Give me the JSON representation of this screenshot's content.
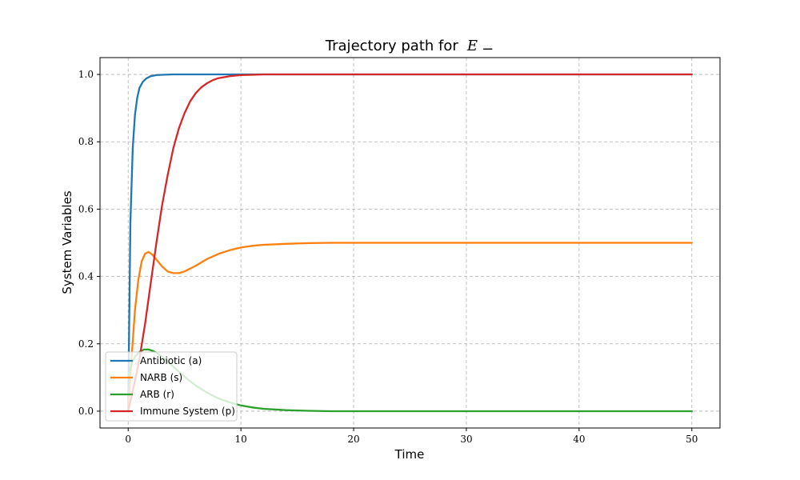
{
  "chart_data": {
    "type": "line",
    "title": "Trajectory path for",
    "title_math": "E",
    "title_math_sub": "−",
    "xlabel": "Time",
    "ylabel": "System Variables",
    "xlim": [
      -2.5,
      52.5
    ],
    "ylim": [
      -0.05,
      1.05
    ],
    "xticks": [
      0,
      10,
      20,
      30,
      40,
      50
    ],
    "xtick_labels": [
      "0",
      "10",
      "20",
      "30",
      "40",
      "50"
    ],
    "yticks": [
      0.0,
      0.2,
      0.4,
      0.6,
      0.8,
      1.0
    ],
    "ytick_labels": [
      "0.0",
      "0.2",
      "0.4",
      "0.6",
      "0.8",
      "1.0"
    ],
    "grid": true,
    "legend_position": "lower-left",
    "series": [
      {
        "name": "Antibiotic (a)",
        "color": "#1f77b4",
        "x": [
          0,
          0.2,
          0.4,
          0.6,
          0.8,
          1.0,
          1.3,
          1.6,
          2.0,
          2.5,
          3.0,
          4.0,
          6.0,
          10,
          20,
          30,
          40,
          50
        ],
        "y": [
          0.0,
          0.56,
          0.78,
          0.88,
          0.93,
          0.96,
          0.978,
          0.988,
          0.995,
          0.998,
          0.999,
          1.0,
          1.0,
          1.0,
          1.0,
          1.0,
          1.0,
          1.0
        ]
      },
      {
        "name": "NARB (s)",
        "color": "#ff7f0e",
        "x": [
          0,
          0.3,
          0.6,
          0.9,
          1.2,
          1.5,
          1.8,
          2.1,
          2.5,
          3.0,
          3.5,
          4.0,
          4.5,
          5.0,
          6.0,
          7.0,
          8.0,
          9.0,
          10,
          11,
          12,
          14,
          16,
          18,
          20,
          25,
          30,
          40,
          50
        ],
        "y": [
          0.0,
          0.16,
          0.3,
          0.39,
          0.445,
          0.468,
          0.473,
          0.466,
          0.45,
          0.43,
          0.415,
          0.41,
          0.41,
          0.415,
          0.432,
          0.452,
          0.467,
          0.478,
          0.486,
          0.491,
          0.494,
          0.497,
          0.499,
          0.5,
          0.5,
          0.5,
          0.5,
          0.5,
          0.5
        ]
      },
      {
        "name": "ARB (r)",
        "color": "#2ca02c",
        "x": [
          0,
          0.3,
          0.6,
          1.0,
          1.4,
          1.8,
          2.2,
          2.6,
          3.0,
          3.5,
          4.0,
          5.0,
          6.0,
          7.0,
          8.0,
          9.0,
          10,
          11,
          12,
          14,
          16,
          18,
          20,
          30,
          40,
          50
        ],
        "y": [
          0.1,
          0.14,
          0.162,
          0.176,
          0.183,
          0.183,
          0.179,
          0.172,
          0.162,
          0.148,
          0.132,
          0.102,
          0.076,
          0.055,
          0.038,
          0.026,
          0.017,
          0.011,
          0.007,
          0.003,
          0.001,
          0.0,
          0.0,
          0.0,
          0.0,
          0.0
        ]
      },
      {
        "name": "Immune System (p)",
        "color": "#d62728",
        "x": [
          0,
          0.3,
          0.6,
          1.0,
          1.5,
          2.0,
          2.5,
          3.0,
          3.5,
          4.0,
          4.5,
          5.0,
          5.5,
          6.0,
          6.5,
          7.0,
          7.5,
          8.0,
          9.0,
          10,
          11,
          12,
          14,
          20,
          30,
          40,
          50
        ],
        "y": [
          0.0,
          0.045,
          0.09,
          0.155,
          0.26,
          0.38,
          0.5,
          0.61,
          0.7,
          0.78,
          0.84,
          0.885,
          0.92,
          0.945,
          0.962,
          0.974,
          0.983,
          0.989,
          0.995,
          0.998,
          0.999,
          1.0,
          1.0,
          1.0,
          1.0,
          1.0,
          1.0
        ]
      }
    ]
  }
}
